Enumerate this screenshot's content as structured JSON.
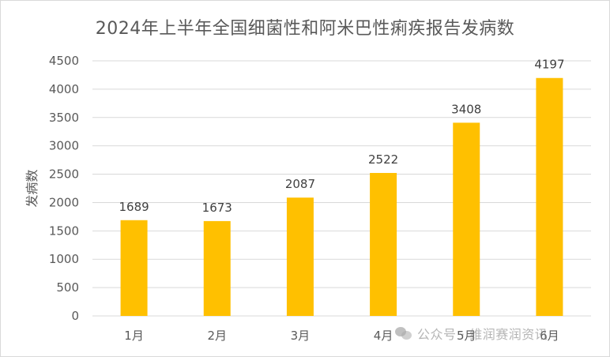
{
  "chart_data": {
    "type": "bar",
    "title": "2024年上半年全国细菌性和阿米巴性痢疾报告发病数",
    "xlabel": "",
    "ylabel": "发病数",
    "categories": [
      "1月",
      "2月",
      "3月",
      "4月",
      "5月",
      "6月"
    ],
    "values": [
      1689,
      1673,
      2087,
      2522,
      3408,
      4197
    ],
    "ylim": [
      0,
      4500
    ],
    "yticks": [
      0,
      500,
      1000,
      1500,
      2000,
      2500,
      3000,
      3500,
      4000,
      4500
    ],
    "grid": true,
    "legend": "none",
    "bar_color": "#FFC000",
    "grid_color": "#D9D9D9"
  },
  "watermark": {
    "icon": "wechat-icon",
    "text": "公众号 · 维润赛润资讯"
  }
}
